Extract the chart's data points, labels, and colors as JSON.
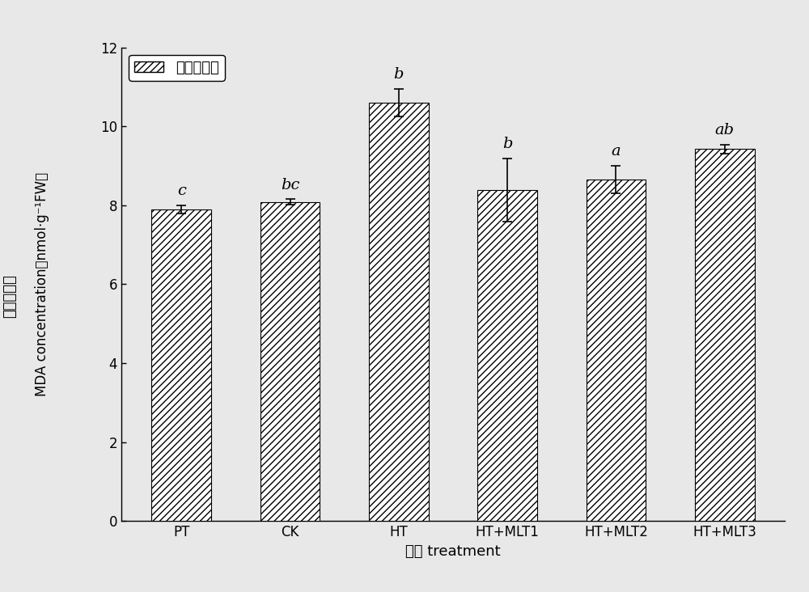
{
  "categories": [
    "PT",
    "CK",
    "HT",
    "HT+MLT1",
    "HT+MLT2",
    "HT+MLT3"
  ],
  "values": [
    7.9,
    8.08,
    10.6,
    8.38,
    8.65,
    9.42
  ],
  "errors": [
    0.1,
    0.07,
    0.35,
    0.8,
    0.35,
    0.12
  ],
  "sig_labels": [
    "c",
    "bc",
    "b",
    "b",
    "a",
    "ab"
  ],
  "sig_label_y_offsets": [
    0.18,
    0.18,
    0.18,
    0.18,
    0.18,
    0.18
  ],
  "ylabel_cn": "丙二醛含量",
  "ylabel_en": "MDA concentration（nmol·g⁻¹FW）",
  "xlabel": "处理 treatment",
  "ylim": [
    0,
    12
  ],
  "yticks": [
    0,
    2,
    4,
    6,
    8,
    10,
    12
  ],
  "legend_label": "丙二醛含量",
  "bar_color": "white",
  "bar_edgecolor": "black",
  "hatch": "////",
  "axis_fontsize": 13,
  "tick_fontsize": 12,
  "sig_fontsize": 14,
  "legend_fontsize": 13,
  "bar_width": 0.55,
  "bg_color": "#e8e8e8"
}
